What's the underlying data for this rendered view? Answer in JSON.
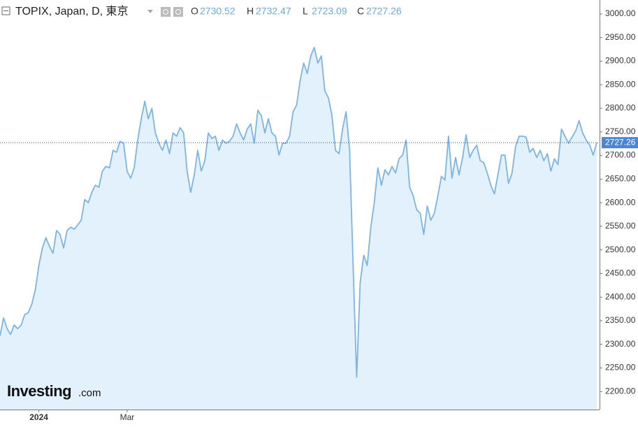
{
  "chart_data": {
    "type": "area",
    "title": "TOPIX, Japan, D, 東京",
    "ohlc": [
      {
        "key": "O",
        "value": 2730.52
      },
      {
        "key": "H",
        "value": 2732.47
      },
      {
        "key": "L",
        "value": 2723.09
      },
      {
        "key": "C",
        "value": 2727.26
      }
    ],
    "watermark": [
      "Investing",
      ".com"
    ],
    "color": "#7db4e6",
    "fill": "#e2f1fb",
    "ylim": [
      2161.8,
      3029.6
    ],
    "yticks": [
      {
        "value": 2200,
        "label": "2200.00"
      },
      {
        "value": 2250,
        "label": "2250.00"
      },
      {
        "value": 2300,
        "label": "2300.00"
      },
      {
        "value": 2350,
        "label": "2350.00"
      },
      {
        "value": 2400,
        "label": "2400.00"
      },
      {
        "value": 2450,
        "label": "2450.00"
      },
      {
        "value": 2500,
        "label": "2500.00"
      },
      {
        "value": 2550,
        "label": "2550.00"
      },
      {
        "value": 2600,
        "label": "2600.00"
      },
      {
        "value": 2650,
        "label": "2650.00"
      },
      {
        "value": 2700,
        "label": "2700.00"
      },
      {
        "value": 2750,
        "label": "2750.00"
      },
      {
        "value": 2800,
        "label": "2800.00"
      },
      {
        "value": 2850,
        "label": "2850.00"
      },
      {
        "value": 2900,
        "label": "2900.00"
      },
      {
        "value": 2950,
        "label": "2950.00"
      },
      {
        "value": 3000,
        "label": "3000.00"
      }
    ],
    "categories": [
      null,
      null,
      null,
      null,
      null,
      null,
      null,
      null,
      null,
      null,
      null,
      "2024",
      null,
      null,
      null,
      null,
      null,
      null,
      null,
      null,
      null,
      null,
      null,
      null,
      null,
      null,
      null,
      null,
      null,
      null,
      null,
      null,
      null,
      null,
      null,
      null,
      "Mar",
      null,
      null,
      null,
      null,
      null,
      null,
      null,
      null,
      null,
      null,
      null,
      null,
      null,
      null,
      null,
      null,
      null,
      null,
      null,
      null,
      null,
      null,
      null,
      null,
      null,
      null,
      null,
      null,
      null,
      null,
      null,
      null,
      null,
      null,
      null,
      null,
      null,
      null,
      null,
      null,
      null,
      null,
      null,
      null,
      null,
      null,
      null,
      null,
      null,
      null,
      null,
      null,
      null,
      null,
      null,
      null,
      null,
      null,
      null,
      null,
      null,
      null,
      null,
      null,
      null,
      null,
      null,
      null,
      null,
      null,
      null,
      null,
      null,
      null,
      null,
      null,
      null,
      null,
      null,
      null,
      null,
      null,
      null,
      null,
      null,
      null,
      null,
      null,
      null,
      null,
      null,
      null,
      null,
      null,
      null,
      null,
      null,
      null,
      null,
      null,
      null,
      null,
      null,
      null,
      null,
      null,
      null,
      null,
      null,
      null,
      null,
      null,
      null,
      null,
      null,
      null,
      null,
      null,
      null,
      null,
      null,
      null,
      null,
      null,
      null,
      null,
      null,
      null,
      null,
      null,
      null,
      null,
      null
    ],
    "values": [
      2318,
      2356,
      2333,
      2321,
      2341,
      2333,
      2341,
      2363,
      2367,
      2385,
      2415,
      2467,
      2504,
      2526,
      2508,
      2493,
      2541,
      2533,
      2504,
      2541,
      2548,
      2544,
      2553,
      2563,
      2607,
      2600,
      2622,
      2637,
      2633,
      2667,
      2677,
      2674,
      2711,
      2707,
      2730,
      2726,
      2667,
      2652,
      2674,
      2733,
      2778,
      2815,
      2778,
      2800,
      2748,
      2726,
      2711,
      2733,
      2704,
      2748,
      2741,
      2759,
      2748,
      2667,
      2622,
      2659,
      2711,
      2667,
      2689,
      2748,
      2736,
      2741,
      2711,
      2733,
      2726,
      2730,
      2741,
      2767,
      2748,
      2733,
      2756,
      2767,
      2726,
      2796,
      2785,
      2748,
      2778,
      2748,
      2741,
      2701,
      2726,
      2726,
      2741,
      2793,
      2807,
      2859,
      2896,
      2874,
      2911,
      2929,
      2896,
      2911,
      2837,
      2822,
      2785,
      2711,
      2704,
      2756,
      2793,
      2711,
      2467,
      2230,
      2430,
      2489,
      2467,
      2548,
      2600,
      2674,
      2637,
      2670,
      2659,
      2677,
      2663,
      2693,
      2701,
      2733,
      2633,
      2615,
      2585,
      2578,
      2533,
      2593,
      2563,
      2578,
      2615,
      2656,
      2648,
      2741,
      2652,
      2696,
      2659,
      2696,
      2744,
      2696,
      2711,
      2722,
      2689,
      2685,
      2663,
      2637,
      2619,
      2659,
      2701,
      2701,
      2641,
      2663,
      2719,
      2741,
      2741,
      2739,
      2707,
      2715,
      2696,
      2711,
      2689,
      2704,
      2667,
      2693,
      2681,
      2756,
      2741,
      2726,
      2739,
      2752,
      2774,
      2748,
      2733,
      2722,
      2701,
      2727.26
    ]
  }
}
